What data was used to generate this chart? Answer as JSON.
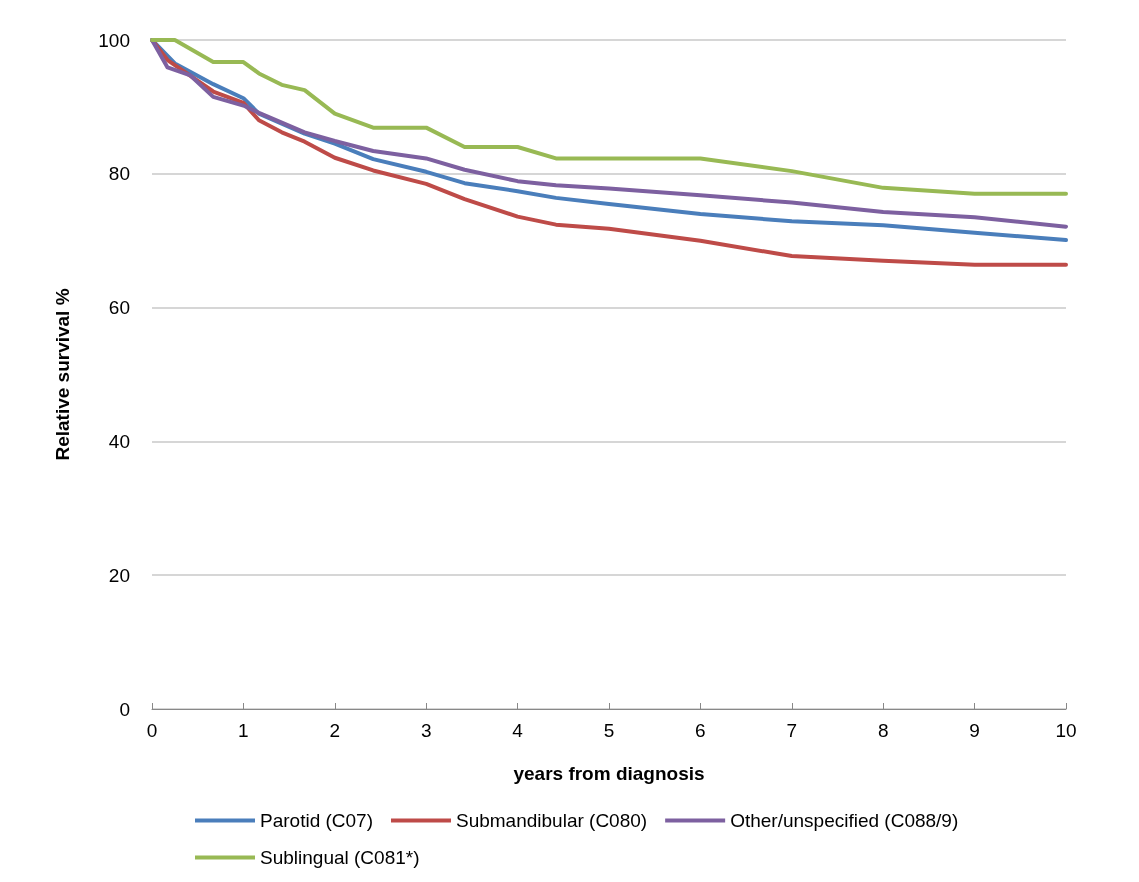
{
  "chart_data": {
    "type": "line",
    "xlabel": "years from diagnosis",
    "ylabel": "Relative survival %",
    "xlim": [
      0,
      10
    ],
    "xticks": [
      0,
      1,
      2,
      3,
      4,
      5,
      6,
      7,
      8,
      9,
      10
    ],
    "ylim": [
      0,
      100
    ],
    "yticks": [
      0,
      20,
      40,
      60,
      80,
      100
    ],
    "grid": "y",
    "legend": "bottom",
    "marker": "none",
    "line_style": "solid",
    "series": [
      {
        "name": "Parotid (C07)",
        "color": "#4a7ebb",
        "x": [
          0,
          0.25,
          0.67,
          1,
          1.17,
          1.42,
          1.67,
          2,
          2.42,
          3,
          3.42,
          4,
          4.42,
          5,
          6,
          7,
          8,
          9,
          10
        ],
        "values": [
          100,
          96.5,
          93.4,
          91.3,
          89,
          87.5,
          86,
          84.5,
          82.2,
          80.3,
          78.6,
          77.4,
          76.4,
          75.5,
          74,
          72.9,
          72.3,
          71.2,
          70.1
        ]
      },
      {
        "name": "Submandibular (C080)",
        "color": "#be4b48",
        "x": [
          0,
          0.17,
          0.67,
          1,
          1.17,
          1.42,
          1.67,
          2,
          2.42,
          3,
          3.42,
          4,
          4.42,
          5,
          6,
          7,
          8,
          9,
          10
        ],
        "values": [
          100,
          97,
          92.3,
          90.6,
          88,
          86.2,
          84.8,
          82.4,
          80.5,
          78.5,
          76.2,
          73.6,
          72.4,
          71.8,
          70,
          67.7,
          67,
          66.4,
          66.4
        ]
      },
      {
        "name": "Other/unspecified (C088/9)",
        "color": "#7d60a0",
        "x": [
          0,
          0.17,
          0.42,
          0.67,
          1,
          1.17,
          1.67,
          2,
          2.42,
          3,
          3.42,
          4,
          4.42,
          5,
          6,
          7,
          8,
          9,
          10
        ],
        "values": [
          100,
          95.9,
          94.7,
          91.5,
          90.2,
          89.1,
          86.2,
          84.9,
          83.4,
          82.3,
          80.6,
          78.9,
          78.3,
          77.8,
          76.8,
          75.7,
          74.3,
          73.5,
          72.1
        ]
      },
      {
        "name": "Sublingual (C081*)",
        "color": "#98b954",
        "x": [
          0,
          0.25,
          0.67,
          1,
          1.17,
          1.42,
          1.67,
          2,
          2.42,
          3,
          3.42,
          4,
          4.42,
          6,
          7,
          8,
          9,
          10
        ],
        "values": [
          100,
          100,
          96.7,
          96.7,
          95,
          93.3,
          92.5,
          89,
          86.9,
          86.9,
          84,
          84,
          82.3,
          82.3,
          80.4,
          77.9,
          77,
          77
        ]
      }
    ]
  }
}
